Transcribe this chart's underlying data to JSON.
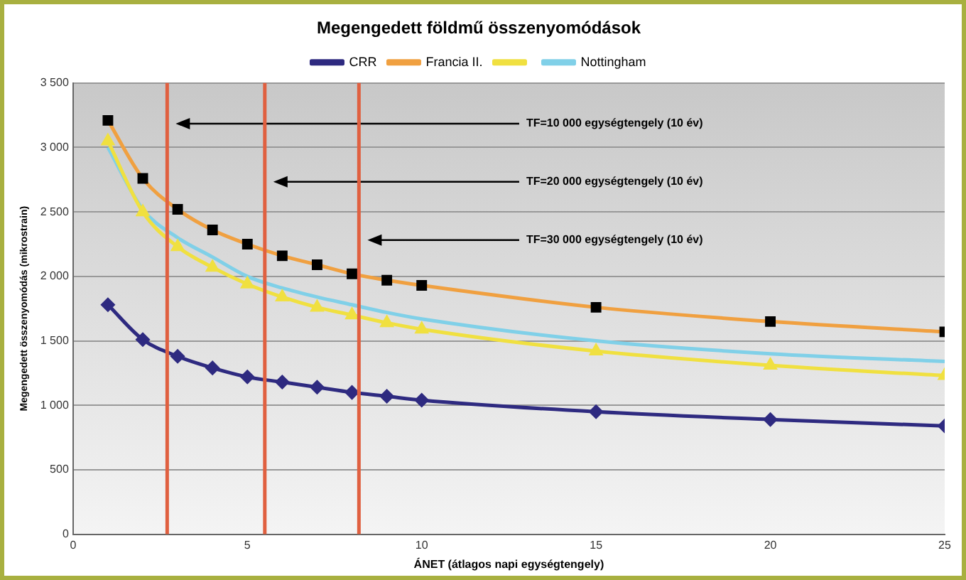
{
  "chart_data": {
    "type": "line",
    "title": "Megengedett földmű összenyomódások",
    "xlabel": "ÁNET (átlagos napi egységtengely)",
    "ylabel": "Megengedett összenyomódás (mikrostrain)",
    "x": [
      1,
      2,
      3,
      4,
      5,
      6,
      7,
      8,
      9,
      10,
      15,
      20,
      25
    ],
    "series": [
      {
        "name": "CRR",
        "color": "#2e2a80",
        "marker": "diamond",
        "values": [
          1780,
          1510,
          1380,
          1290,
          1220,
          1180,
          1140,
          1100,
          1070,
          1040,
          950,
          890,
          840
        ]
      },
      {
        "name": "Francia II.",
        "color": "#f0a040",
        "marker": "square",
        "values": [
          3210,
          2760,
          2520,
          2360,
          2250,
          2160,
          2090,
          2020,
          1970,
          1930,
          1760,
          1650,
          1570
        ]
      },
      {
        "color": "#f0e040",
        "marker": "triangle",
        "values": [
          3050,
          2500,
          2230,
          2070,
          1940,
          1840,
          1760,
          1700,
          1640,
          1590,
          1420,
          1310,
          1230
        ]
      },
      {
        "name": "Nottingham",
        "color": "#80d0e8",
        "marker": "none",
        "values": [
          3000,
          2520,
          2300,
          2150,
          2000,
          1910,
          1840,
          1780,
          1720,
          1670,
          1500,
          1400,
          1340
        ]
      }
    ],
    "xlim": [
      0,
      25
    ],
    "xticks": [
      0,
      5,
      10,
      15,
      20,
      25
    ],
    "ylim": [
      0,
      3500
    ],
    "yticks": [
      0,
      500,
      {
        "value": 1000,
        "label": "1 000"
      },
      {
        "value": 1500,
        "label": "1 500"
      },
      {
        "value": 2000,
        "label": "2 000"
      },
      {
        "value": 2500,
        "label": "2 500"
      },
      {
        "value": 3000,
        "label": "3 000"
      },
      {
        "value": 3500,
        "label": "3 500"
      }
    ],
    "ref_lines": [
      {
        "axis": "x",
        "value": 2.7,
        "color": "#e06040"
      },
      {
        "axis": "x",
        "value": 5.5,
        "color": "#e06040"
      },
      {
        "axis": "x",
        "value": 8.2,
        "color": "#e06040"
      }
    ],
    "annotations": [
      "TF=10 000 egységtengely (10 év)",
      "TF=20 000 egységtengely (10 év)",
      "TF=30 000 egységtengely (10 év)"
    ],
    "grid": "y",
    "legend": "top"
  }
}
